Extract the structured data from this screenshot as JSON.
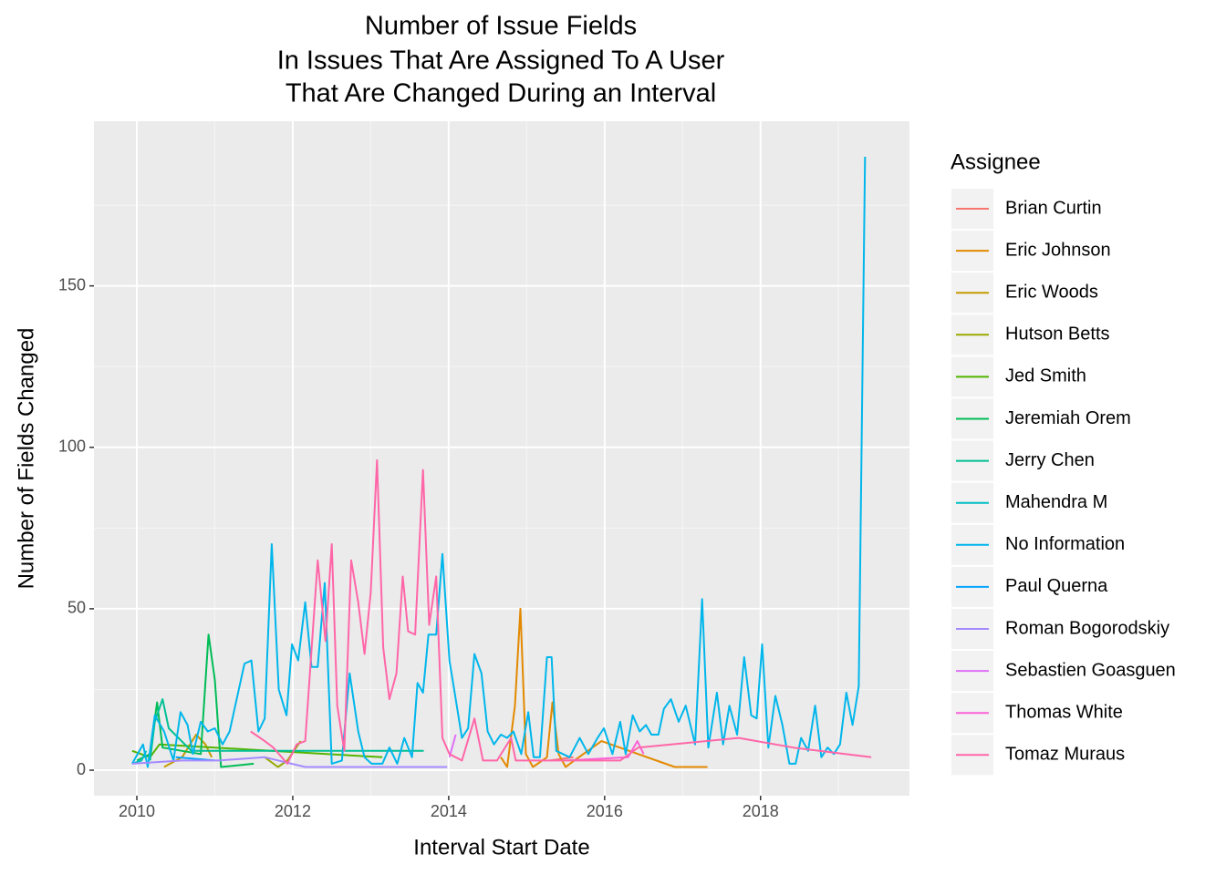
{
  "chart_data": {
    "type": "line",
    "title": [
      "Number of Issue Fields",
      "In Issues That Are Assigned To A User",
      "That Are Changed During an Interval"
    ],
    "x_label": "Interval Start Date",
    "y_label": "Number of Fields Changed",
    "legend_title": "Assignee",
    "legend_position": "right",
    "grid": true,
    "xlim": [
      2009.45,
      2019.91
    ],
    "xticks": [
      2010,
      2012,
      2014,
      2016,
      2018
    ],
    "ylim": [
      -7.9,
      201
    ],
    "yticks": [
      0,
      50,
      100,
      150
    ],
    "series": [
      {
        "name": "Brian Curtin",
        "color": "#F8766D",
        "x": [
          2015.3,
          2015.6
        ],
        "values": [
          3,
          4
        ]
      },
      {
        "name": "Eric Johnson",
        "color": "#E38900",
        "x": [
          2014.67,
          2014.75,
          2014.85,
          2014.92,
          2014.99,
          2015.08,
          2015.26,
          2015.33,
          2015.41,
          2015.5,
          2015.61,
          2015.96,
          2016.43,
          2016.9,
          2017.32
        ],
        "values": [
          4,
          1,
          20,
          50,
          5,
          1,
          4,
          21,
          5,
          1,
          3,
          9,
          5,
          1,
          1
        ]
      },
      {
        "name": "Eric Woods",
        "color": "#C49A00",
        "x": [
          2010.35,
          2010.58,
          2010.76,
          2010.88,
          2010.96
        ],
        "values": [
          1,
          4,
          11,
          8,
          4
        ]
      },
      {
        "name": "Hutson Betts",
        "color": "#99A800",
        "x": [
          2011.64,
          2011.81,
          2011.93,
          2012.1
        ],
        "values": [
          4,
          1,
          3,
          9
        ]
      },
      {
        "name": "Jed Smith",
        "color": "#53B400",
        "x": [
          2009.94,
          2010.17,
          2010.29,
          2013.15
        ],
        "values": [
          6,
          4,
          8,
          4
        ]
      },
      {
        "name": "Jeremiah Orem",
        "color": "#00BC56",
        "x": [
          2010.0,
          2010.17,
          2010.26,
          2010.33,
          2010.82,
          2010.92,
          2011.0,
          2011.08,
          2011.5
        ],
        "values": [
          3,
          5,
          21,
          7,
          5,
          42,
          28,
          1,
          2
        ]
      },
      {
        "name": "Jerry Chen",
        "color": "#00C094",
        "x": [
          2010.17,
          2010.23,
          2010.33,
          2010.41,
          2010.7,
          2013.68
        ],
        "values": [
          3,
          15,
          22,
          13,
          6,
          6
        ]
      },
      {
        "name": "Mahendra M",
        "color": "#00BFC4",
        "x": [
          2009.94,
          2010.06,
          2010.12
        ],
        "values": [
          2,
          3,
          6
        ]
      },
      {
        "name": "No Information",
        "color": "#00B6EB",
        "x": [
          2009.94,
          2010.08,
          2010.14,
          2010.23,
          2010.35,
          2010.47,
          2010.56,
          2010.65,
          2010.72,
          2010.82,
          2010.91,
          2011.0,
          2011.1,
          2011.19,
          2011.38,
          2011.47,
          2011.56,
          2011.64,
          2011.73,
          2011.82,
          2011.92,
          2011.99,
          2012.07,
          2012.16,
          2012.24,
          2012.32,
          2012.41,
          2012.5,
          2012.63,
          2012.73,
          2012.84,
          2012.92,
          2013.01,
          2013.15,
          2013.24,
          2013.34,
          2013.43,
          2013.53,
          2013.6,
          2013.67,
          2013.74,
          2013.84,
          2013.92,
          2014.01,
          2014.09,
          2014.17,
          2014.25,
          2014.33,
          2014.42,
          2014.5,
          2014.58,
          2014.67,
          2014.75,
          2014.83,
          2014.93,
          2015.02,
          2015.09,
          2015.17,
          2015.26,
          2015.32,
          2015.38,
          2015.55,
          2015.68,
          2015.79,
          2015.91,
          2015.99,
          2016.1,
          2016.2,
          2016.27,
          2016.36,
          2016.45,
          2016.53,
          2016.6,
          2016.69,
          2016.76,
          2016.85,
          2016.95,
          2017.04,
          2017.16,
          2017.25,
          2017.33,
          2017.44,
          2017.52,
          2017.6,
          2017.7,
          2017.79,
          2017.88,
          2017.95,
          2018.02,
          2018.1,
          2018.19,
          2018.28,
          2018.37,
          2018.45,
          2018.52,
          2018.61,
          2018.7,
          2018.78,
          2018.86,
          2018.94,
          2019.02,
          2019.1,
          2019.18,
          2019.26,
          2019.34
        ],
        "values": [
          2,
          8,
          1,
          17,
          12,
          3,
          18,
          14,
          5,
          15,
          12,
          13,
          8,
          12,
          33,
          34,
          12,
          16,
          70,
          25,
          17,
          39,
          34,
          52,
          32,
          32,
          58,
          2,
          3,
          30,
          12,
          4,
          2,
          2,
          7,
          2,
          10,
          4,
          27,
          24,
          42,
          42,
          67,
          34,
          22,
          10,
          13,
          36,
          30,
          12,
          8,
          11,
          10,
          12,
          5,
          18,
          4,
          4,
          35,
          35,
          6,
          4,
          10,
          5,
          10,
          13,
          5,
          15,
          5,
          17,
          12,
          14,
          11,
          11,
          19,
          22,
          15,
          20,
          8,
          53,
          7,
          24,
          8,
          20,
          11,
          35,
          17,
          16,
          39,
          7,
          23,
          14,
          2,
          2,
          10,
          6,
          20,
          4,
          7,
          5,
          8,
          24,
          14,
          26,
          190
        ]
      },
      {
        "name": "Paul Querna",
        "color": "#06A4FF",
        "x": [
          2010.5,
          2011.0
        ],
        "values": [
          4,
          3
        ]
      },
      {
        "name": "Roman Bogorodskiy",
        "color": "#A58AFF",
        "x": [
          2009.94,
          2010.58,
          2011.05,
          2011.64,
          2012.16,
          2012.69,
          2013.98
        ],
        "values": [
          2,
          3,
          3,
          4,
          1,
          1,
          1
        ]
      },
      {
        "name": "Sebastien Goasguen",
        "color": "#DF70F8",
        "x": [
          2014.01,
          2014.09
        ],
        "values": [
          4,
          11
        ]
      },
      {
        "name": "Thomas White",
        "color": "#FB61D7",
        "x": [
          2015.5,
          2016.3,
          2016.42,
          2016.5
        ],
        "values": [
          3,
          4,
          9,
          5
        ]
      },
      {
        "name": "Tomaz Muraus",
        "color": "#FF66A8",
        "x": [
          2011.46,
          2011.64,
          2011.75,
          2011.93,
          2012.05,
          2012.16,
          2012.32,
          2012.42,
          2012.5,
          2012.57,
          2012.66,
          2012.75,
          2012.84,
          2012.92,
          2013.0,
          2013.08,
          2013.16,
          2013.24,
          2013.33,
          2013.41,
          2013.48,
          2013.57,
          2013.67,
          2013.75,
          2013.84,
          2013.92,
          2014.01,
          2014.17,
          2014.33,
          2014.44,
          2014.62,
          2014.8,
          2014.86,
          2015.26,
          2015.73,
          2016.2,
          2016.43,
          2017.72,
          2018.42,
          2019.42
        ],
        "values": [
          12,
          9,
          7,
          2,
          8,
          9,
          65,
          40,
          70,
          20,
          6,
          65,
          52,
          36,
          55,
          96,
          38,
          22,
          30,
          60,
          43,
          42,
          93,
          45,
          60,
          10,
          5,
          3,
          16,
          3,
          3,
          10,
          3,
          3,
          3,
          3,
          7,
          10,
          7,
          4
        ]
      }
    ]
  }
}
